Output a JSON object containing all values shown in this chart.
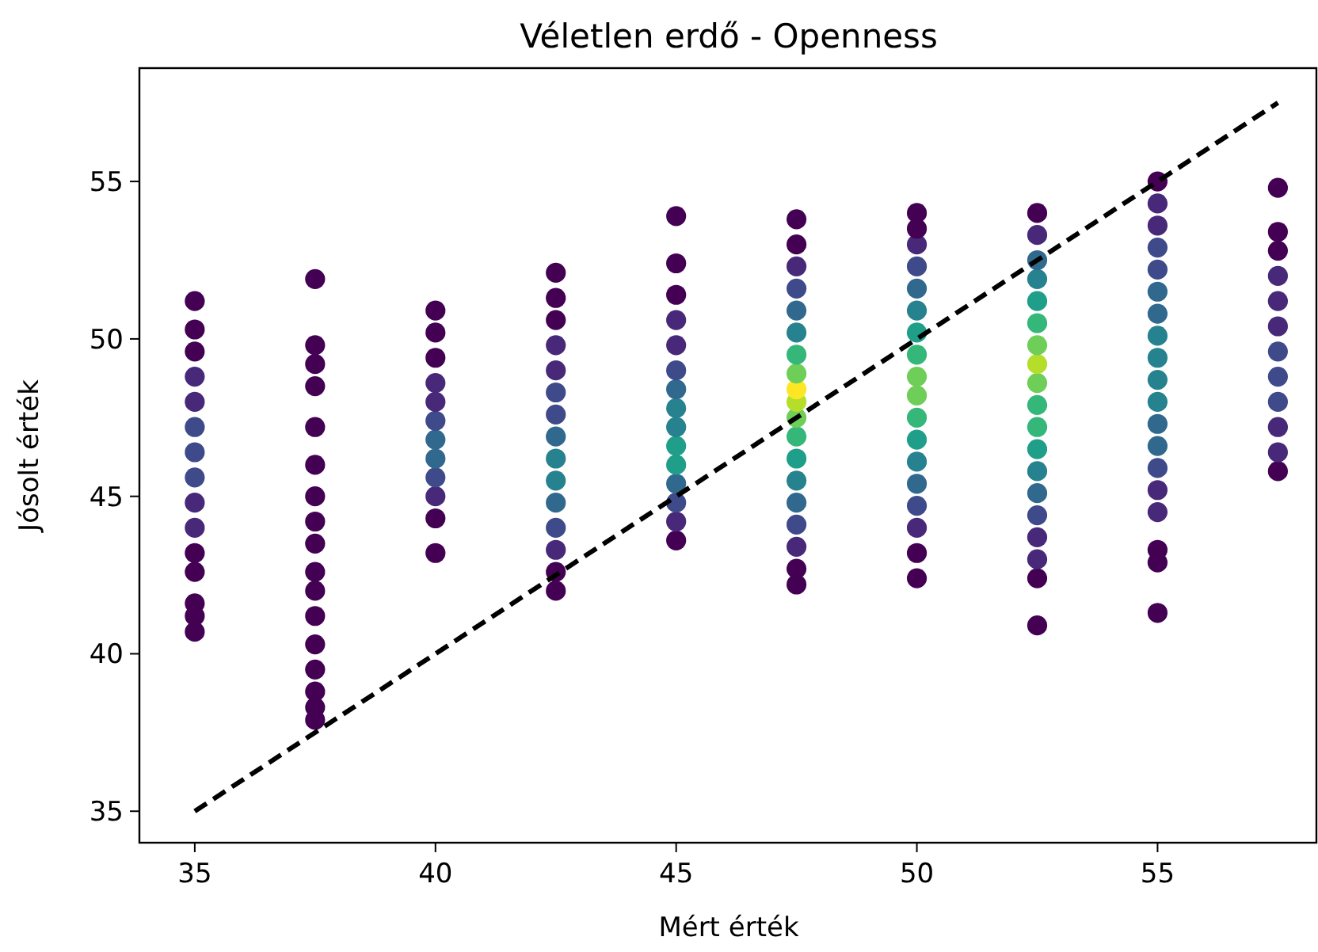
{
  "chart_data": {
    "type": "scatter",
    "title": "Véletlen erdő - Openness",
    "xlabel": "Mért érték",
    "ylabel": "Jósolt érték",
    "xlim": [
      33.85,
      58.3
    ],
    "ylim": [
      34,
      58.6
    ],
    "xticks": [
      35,
      40,
      45,
      50,
      55
    ],
    "yticks": [
      35,
      40,
      45,
      50,
      55
    ],
    "grid": false,
    "marker": "circle",
    "series": [
      {
        "x": [
          35,
          35,
          35,
          35,
          35,
          35,
          35,
          35,
          35,
          35,
          35,
          35,
          35,
          35,
          35,
          37.5,
          37.5,
          37.5,
          37.5,
          37.5,
          37.5,
          37.5,
          37.5,
          37.5,
          37.5,
          37.5,
          37.5,
          37.5,
          37.5,
          37.5,
          37.5,
          37.5,
          40,
          40,
          40,
          40,
          40,
          40,
          40,
          40,
          40,
          40,
          40,
          40,
          42.5,
          42.5,
          42.5,
          42.5,
          42.5,
          42.5,
          42.5,
          42.5,
          42.5,
          42.5,
          42.5,
          42.5,
          42.5,
          42.5,
          42.5,
          45,
          45,
          45,
          45,
          45,
          45,
          45,
          45,
          45,
          45,
          45,
          45,
          45,
          45,
          45,
          47.5,
          47.5,
          47.5,
          47.5,
          47.5,
          47.5,
          47.5,
          47.5,
          47.5,
          47.5,
          47.5,
          47.5,
          47.5,
          47.5,
          47.5,
          47.5,
          47.5,
          47.5,
          47.5,
          50,
          50,
          50,
          50,
          50,
          50,
          50,
          50,
          50,
          50,
          50,
          50,
          50,
          50,
          50,
          50,
          50,
          50,
          52.5,
          52.5,
          52.5,
          52.5,
          52.5,
          52.5,
          52.5,
          52.5,
          52.5,
          52.5,
          52.5,
          52.5,
          52.5,
          52.5,
          52.5,
          52.5,
          52.5,
          52.5,
          52.5,
          55,
          55,
          55,
          55,
          55,
          55,
          55,
          55,
          55,
          55,
          55,
          55,
          55,
          55,
          55,
          55,
          55,
          55,
          55,
          57.5,
          57.5,
          57.5,
          57.5,
          57.5,
          57.5,
          57.5,
          57.5,
          57.5,
          57.5,
          57.5,
          57.5
        ],
        "values": [
          40.7,
          41.2,
          41.6,
          42.6,
          43.2,
          44.0,
          44.8,
          45.6,
          46.4,
          47.2,
          48.0,
          48.8,
          49.6,
          50.3,
          51.2,
          37.9,
          38.3,
          38.8,
          39.5,
          40.3,
          41.2,
          42.0,
          42.6,
          43.5,
          44.2,
          45.0,
          46.0,
          47.2,
          48.5,
          49.2,
          49.8,
          51.9,
          43.2,
          44.3,
          45.0,
          45.6,
          46.2,
          46.8,
          47.4,
          48.0,
          48.6,
          49.4,
          50.2,
          50.9,
          42.0,
          42.6,
          43.3,
          44.0,
          44.8,
          45.5,
          46.2,
          46.9,
          47.6,
          48.3,
          49.0,
          49.8,
          50.6,
          51.3,
          52.1,
          43.6,
          44.2,
          44.8,
          45.4,
          46.0,
          46.6,
          47.2,
          47.8,
          48.4,
          49.0,
          49.8,
          50.6,
          51.4,
          52.4,
          53.9,
          42.2,
          42.7,
          43.4,
          44.1,
          44.8,
          45.5,
          46.2,
          46.9,
          47.5,
          48.0,
          48.4,
          48.9,
          49.5,
          50.2,
          50.9,
          51.6,
          52.3,
          53.0,
          53.8,
          42.4,
          43.2,
          44.0,
          44.7,
          45.4,
          46.1,
          46.8,
          47.5,
          48.2,
          48.8,
          49.5,
          50.2,
          50.9,
          51.6,
          52.3,
          53.0,
          53.5,
          54.0,
          40.9,
          42.4,
          43.0,
          43.7,
          44.4,
          45.1,
          45.8,
          46.5,
          47.2,
          47.9,
          48.6,
          49.2,
          49.8,
          50.5,
          51.2,
          51.9,
          52.5,
          53.3,
          54.0,
          41.3,
          42.9,
          43.3,
          44.5,
          45.2,
          45.9,
          46.6,
          47.3,
          48.0,
          48.7,
          49.4,
          50.1,
          50.8,
          51.5,
          52.2,
          52.9,
          53.6,
          54.3,
          55.0,
          45.8,
          46.4,
          47.2,
          48.0,
          48.8,
          49.6,
          50.4,
          51.2,
          52.0,
          52.8,
          53.4,
          54.8
        ],
        "colors": [
          "#440154",
          "#440154",
          "#440154",
          "#440154",
          "#440154",
          "#482878",
          "#482878",
          "#3e4a89",
          "#3e4a89",
          "#3e4a89",
          "#482878",
          "#482878",
          "#440154",
          "#440154",
          "#440154",
          "#440154",
          "#440154",
          "#440154",
          "#440154",
          "#440154",
          "#440154",
          "#440154",
          "#440154",
          "#440154",
          "#440154",
          "#440154",
          "#440154",
          "#440154",
          "#440154",
          "#440154",
          "#440154",
          "#440154",
          "#440154",
          "#440154",
          "#482878",
          "#3e4a89",
          "#31688e",
          "#31688e",
          "#3e4a89",
          "#482878",
          "#482878",
          "#440154",
          "#440154",
          "#440154",
          "#440154",
          "#440154",
          "#482878",
          "#3e4a89",
          "#31688e",
          "#26828e",
          "#26828e",
          "#31688e",
          "#3e4a89",
          "#3e4a89",
          "#482878",
          "#482878",
          "#440154",
          "#440154",
          "#440154",
          "#440154",
          "#482878",
          "#3e4a89",
          "#31688e",
          "#1f9e89",
          "#1f9e89",
          "#26828e",
          "#26828e",
          "#31688e",
          "#3e4a89",
          "#482878",
          "#482878",
          "#440154",
          "#440154",
          "#440154",
          "#440154",
          "#440154",
          "#482878",
          "#3e4a89",
          "#31688e",
          "#26828e",
          "#1f9e89",
          "#35b779",
          "#6ece58",
          "#b5de2b",
          "#fde725",
          "#6ece58",
          "#35b779",
          "#26828e",
          "#31688e",
          "#3e4a89",
          "#482878",
          "#440154",
          "#440154",
          "#440154",
          "#440154",
          "#482878",
          "#3e4a89",
          "#31688e",
          "#26828e",
          "#1f9e89",
          "#35b779",
          "#6ece58",
          "#6ece58",
          "#35b779",
          "#1f9e89",
          "#26828e",
          "#31688e",
          "#3e4a89",
          "#482878",
          "#440154",
          "#440154",
          "#440154",
          "#440154",
          "#482878",
          "#482878",
          "#3e4a89",
          "#31688e",
          "#26828e",
          "#1f9e89",
          "#35b779",
          "#35b779",
          "#6ece58",
          "#b5de2b",
          "#6ece58",
          "#35b779",
          "#1f9e89",
          "#26828e",
          "#31688e",
          "#482878",
          "#440154",
          "#440154",
          "#440154",
          "#440154",
          "#482878",
          "#482878",
          "#3e4a89",
          "#31688e",
          "#31688e",
          "#26828e",
          "#26828e",
          "#26828e",
          "#26828e",
          "#31688e",
          "#31688e",
          "#3e4a89",
          "#3e4a89",
          "#482878",
          "#482878",
          "#440154",
          "#440154",
          "#482878",
          "#482878",
          "#3e4a89",
          "#3e4a89",
          "#3e4a89",
          "#482878",
          "#482878",
          "#482878",
          "#440154",
          "#440154",
          "#440154"
        ]
      },
      {
        "type": "line",
        "x": [
          35,
          57.5
        ],
        "values": [
          35,
          57.5
        ],
        "color": "#000000",
        "line_style": "dashed",
        "marker": "none"
      }
    ]
  }
}
